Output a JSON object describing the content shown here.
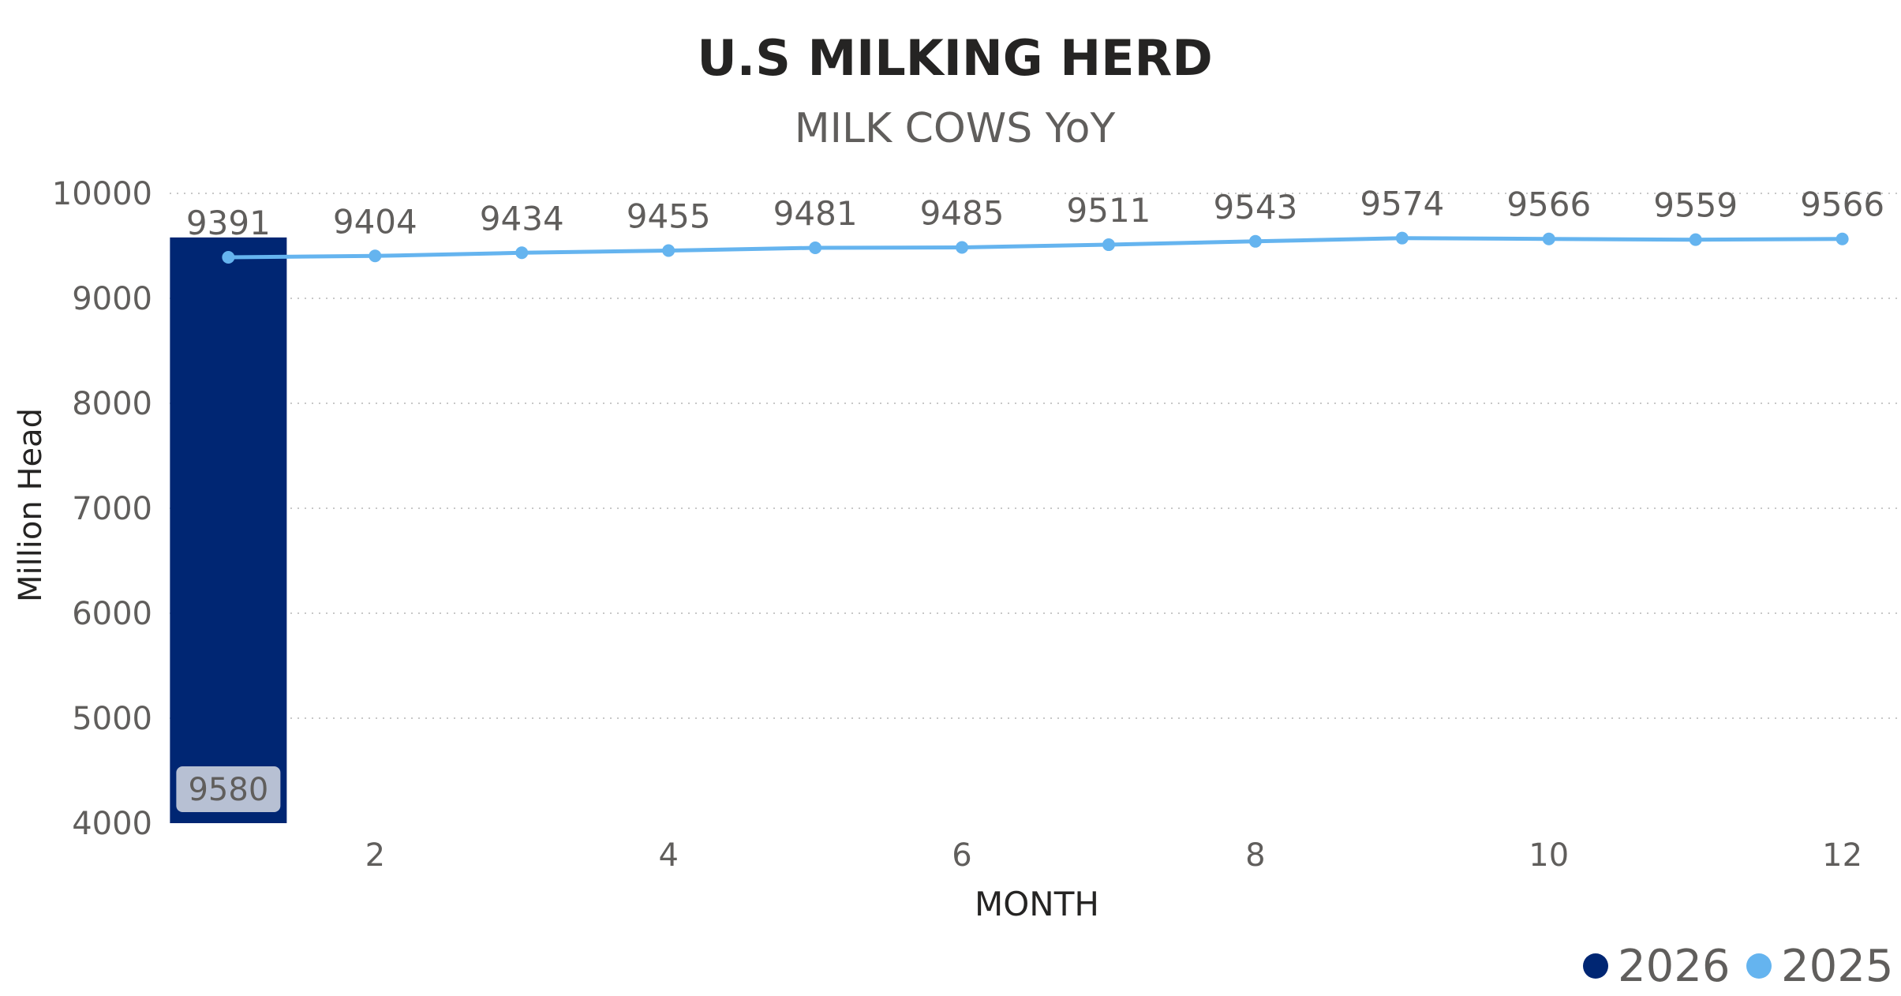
{
  "chart_data": {
    "type": "bar+line",
    "title": "U.S MILKING HERD",
    "subtitle": "MILK COWS YoY",
    "xlabel": "MONTH",
    "ylabel": "Million Head",
    "ylim": [
      4000,
      10000
    ],
    "y_ticks": [
      "4000",
      "5000",
      "6000",
      "7000",
      "8000",
      "9000",
      "10000"
    ],
    "x_ticks": [
      "2",
      "4",
      "6",
      "8",
      "10",
      "12"
    ],
    "x_tick_values": [
      2,
      4,
      6,
      8,
      10,
      12
    ],
    "xlim": [
      0.6,
      12.4
    ],
    "grid": true,
    "legend_placement": "bottom-right",
    "series": [
      {
        "name": "2026",
        "type": "bar",
        "color": "#002673",
        "x": [
          1
        ],
        "values": [
          9580
        ],
        "labels": [
          "9580"
        ]
      },
      {
        "name": "2025",
        "type": "line",
        "color": "#65b4ef",
        "x": [
          1,
          2,
          3,
          4,
          5,
          6,
          7,
          8,
          9,
          10,
          11,
          12
        ],
        "values": [
          9391,
          9404,
          9434,
          9455,
          9481,
          9485,
          9511,
          9543,
          9574,
          9566,
          9559,
          9566
        ],
        "labels": [
          "9391",
          "9404",
          "9434",
          "9455",
          "9481",
          "9485",
          "9511",
          "9543",
          "9574",
          "9566",
          "9559",
          "9566"
        ]
      }
    ]
  }
}
